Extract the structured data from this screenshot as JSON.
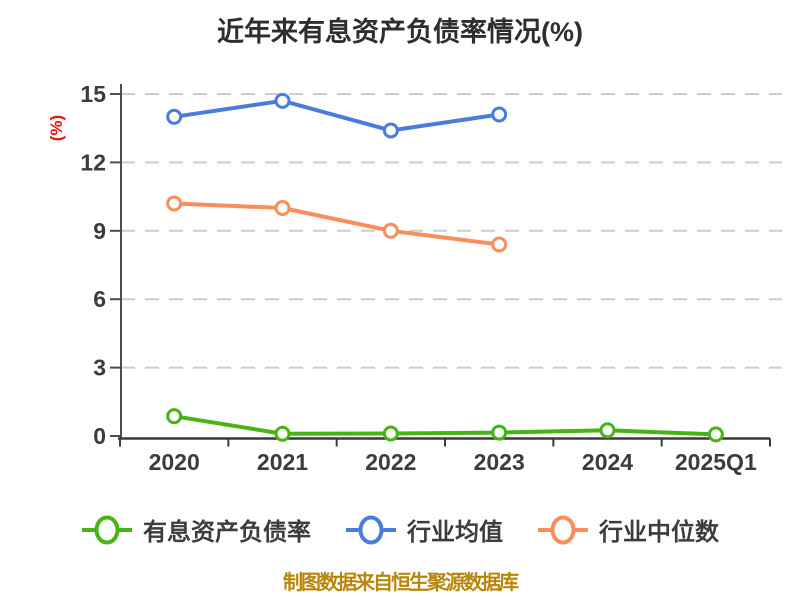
{
  "title": "近年来有息资产负债率情况(%)",
  "footer": {
    "text": "制图数据来自恒生聚源数据库"
  },
  "colors": {
    "background": "#ffffff",
    "title_text": "#2e2e2e",
    "tick_text": "#3c3c3c",
    "axis_line": "#3a3a3a",
    "y_axis_line": "#4d4d4d",
    "gridline": "#cecece",
    "y_unit_label": "#ee1111",
    "footer_text": "#b8860b",
    "series_company": "#47b416",
    "series_mean": "#4a7cdd",
    "series_median": "#f98e5a",
    "marker_fill": "#ffffff"
  },
  "chart_data": {
    "type": "line",
    "title": "近年来有息资产负债率情况(%)",
    "categories": [
      "2020",
      "2021",
      "2022",
      "2023",
      "2024",
      "2025Q1"
    ],
    "series": [
      {
        "name": "有息资产负债率",
        "key": "company-ratio",
        "color": "#47b416",
        "values": [
          0.87,
          0.1,
          0.11,
          0.15,
          0.25,
          0.07
        ]
      },
      {
        "name": "行业均值",
        "key": "industry-mean",
        "color": "#4a7cdd",
        "values": [
          14.0,
          14.7,
          13.4,
          14.1,
          null,
          null
        ]
      },
      {
        "name": "行业中位数",
        "key": "industry-median",
        "color": "#f98e5a",
        "values": [
          10.2,
          10.0,
          9.0,
          8.4,
          null,
          null
        ]
      }
    ],
    "xlabel": "",
    "ylabel": "(%)",
    "ylim": [
      0,
      15
    ],
    "yticks": [
      0,
      3,
      6,
      9,
      12,
      15
    ],
    "grid": "horizontal-dashed",
    "legend_position": "bottom"
  }
}
